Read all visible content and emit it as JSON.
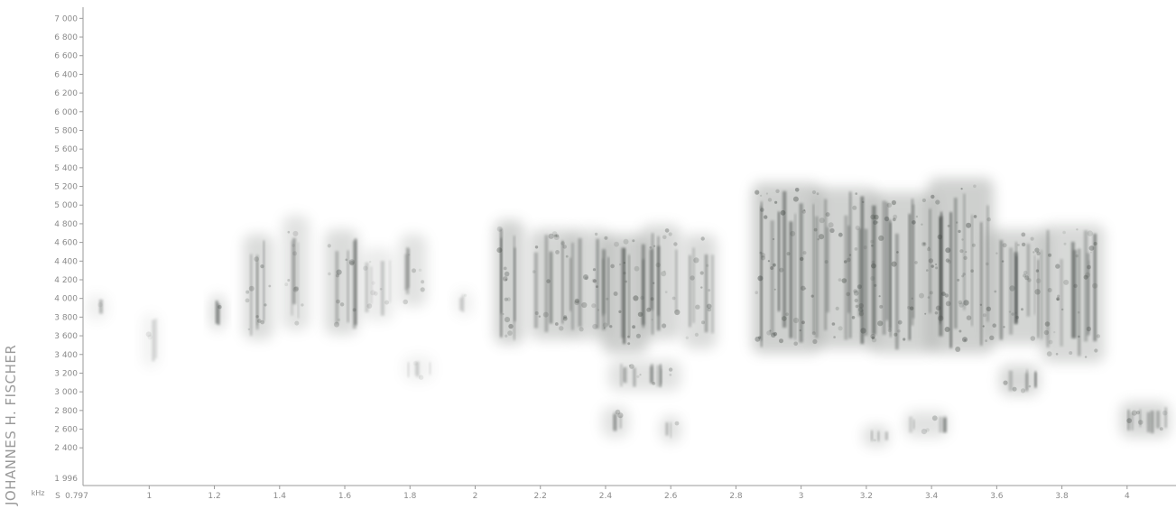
{
  "credit": "JOHANNES H. FISCHER",
  "chart_data": {
    "type": "heatmap",
    "title": "",
    "xunit": "S",
    "yunit": "kHz",
    "xlim": [
      0.797,
      4.15
    ],
    "ylim": [
      1996,
      7100
    ],
    "x_start_label": "0.797",
    "y_floor_label": "1 996",
    "x_ticks": [
      {
        "value": 1,
        "label": "1"
      },
      {
        "value": 1.2,
        "label": "1.2"
      },
      {
        "value": 1.4,
        "label": "1.4"
      },
      {
        "value": 1.6,
        "label": "1.6"
      },
      {
        "value": 1.8,
        "label": "1.8"
      },
      {
        "value": 2,
        "label": "2"
      },
      {
        "value": 2.2,
        "label": "2.2"
      },
      {
        "value": 2.4,
        "label": "2.4"
      },
      {
        "value": 2.6,
        "label": "2.6"
      },
      {
        "value": 2.8,
        "label": "2.8"
      },
      {
        "value": 3,
        "label": "3"
      },
      {
        "value": 3.2,
        "label": "3.2"
      },
      {
        "value": 3.4,
        "label": "3.4"
      },
      {
        "value": 3.6,
        "label": "3.6"
      },
      {
        "value": 3.8,
        "label": "3.8"
      },
      {
        "value": 4,
        "label": "4"
      }
    ],
    "y_ticks": [
      {
        "value": 2400,
        "label": "2 400"
      },
      {
        "value": 2600,
        "label": "2 600"
      },
      {
        "value": 2800,
        "label": "2 800"
      },
      {
        "value": 3000,
        "label": "3 000"
      },
      {
        "value": 3200,
        "label": "3 200"
      },
      {
        "value": 3400,
        "label": "3 400"
      },
      {
        "value": 3600,
        "label": "3 600"
      },
      {
        "value": 3800,
        "label": "3 800"
      },
      {
        "value": 4000,
        "label": "4 000"
      },
      {
        "value": 4200,
        "label": "4 200"
      },
      {
        "value": 4400,
        "label": "4 400"
      },
      {
        "value": 4600,
        "label": "4 600"
      },
      {
        "value": 4800,
        "label": "4 800"
      },
      {
        "value": 5000,
        "label": "5 000"
      },
      {
        "value": 5200,
        "label": "5 200"
      },
      {
        "value": 5400,
        "label": "5 400"
      },
      {
        "value": 5600,
        "label": "5 600"
      },
      {
        "value": 5800,
        "label": "5 800"
      },
      {
        "value": 6000,
        "label": "6 000"
      },
      {
        "value": 6200,
        "label": "6 200"
      },
      {
        "value": 6400,
        "label": "6 400"
      },
      {
        "value": 6600,
        "label": "6 600"
      },
      {
        "value": 6800,
        "label": "6 800"
      },
      {
        "value": 7000,
        "label": "7 000"
      }
    ],
    "energy_blobs": [
      {
        "t0": 0.82,
        "t1": 0.86,
        "f0": 3800,
        "f1": 4000,
        "intensity": 0.25
      },
      {
        "t0": 0.99,
        "t1": 1.02,
        "f0": 3300,
        "f1": 3800,
        "intensity": 0.2
      },
      {
        "t0": 1.2,
        "t1": 1.22,
        "f0": 3700,
        "f1": 4000,
        "intensity": 0.6
      },
      {
        "t0": 1.3,
        "t1": 1.37,
        "f0": 3600,
        "f1": 4650,
        "intensity": 0.55
      },
      {
        "t0": 1.42,
        "t1": 1.48,
        "f0": 3700,
        "f1": 4850,
        "intensity": 0.45
      },
      {
        "t0": 1.55,
        "t1": 1.63,
        "f0": 3650,
        "f1": 4700,
        "intensity": 0.55
      },
      {
        "t0": 1.66,
        "t1": 1.74,
        "f0": 3800,
        "f1": 4500,
        "intensity": 0.3
      },
      {
        "t0": 1.78,
        "t1": 1.84,
        "f0": 3950,
        "f1": 4650,
        "intensity": 0.45
      },
      {
        "t0": 1.79,
        "t1": 1.86,
        "f0": 3150,
        "f1": 3350,
        "intensity": 0.2
      },
      {
        "t0": 1.95,
        "t1": 1.98,
        "f0": 3850,
        "f1": 4050,
        "intensity": 0.25
      },
      {
        "t0": 2.07,
        "t1": 2.14,
        "f0": 3550,
        "f1": 4800,
        "intensity": 0.7
      },
      {
        "t0": 2.18,
        "t1": 2.3,
        "f0": 3600,
        "f1": 4700,
        "intensity": 0.65
      },
      {
        "t0": 2.3,
        "t1": 2.4,
        "f0": 3600,
        "f1": 4700,
        "intensity": 0.6
      },
      {
        "t0": 2.4,
        "t1": 2.52,
        "f0": 3450,
        "f1": 4650,
        "intensity": 0.75
      },
      {
        "t0": 2.42,
        "t1": 2.62,
        "f0": 3050,
        "f1": 3300,
        "intensity": 0.45
      },
      {
        "t0": 2.52,
        "t1": 2.62,
        "f0": 3600,
        "f1": 4750,
        "intensity": 0.6
      },
      {
        "t0": 2.4,
        "t1": 2.46,
        "f0": 2550,
        "f1": 2800,
        "intensity": 0.45
      },
      {
        "t0": 2.58,
        "t1": 2.62,
        "f0": 2500,
        "f1": 2700,
        "intensity": 0.5
      },
      {
        "t0": 2.65,
        "t1": 2.73,
        "f0": 3500,
        "f1": 4650,
        "intensity": 0.55
      },
      {
        "t0": 2.86,
        "t1": 3.05,
        "f0": 3450,
        "f1": 5200,
        "intensity": 0.75
      },
      {
        "t0": 3.05,
        "t1": 3.22,
        "f0": 3500,
        "f1": 5150,
        "intensity": 0.7
      },
      {
        "t0": 3.22,
        "t1": 3.4,
        "f0": 3450,
        "f1": 5100,
        "intensity": 0.7
      },
      {
        "t0": 3.4,
        "t1": 3.58,
        "f0": 3450,
        "f1": 5250,
        "intensity": 0.75
      },
      {
        "t0": 3.58,
        "t1": 3.75,
        "f0": 3550,
        "f1": 4700,
        "intensity": 0.65
      },
      {
        "t0": 3.75,
        "t1": 3.92,
        "f0": 3350,
        "f1": 4750,
        "intensity": 0.6
      },
      {
        "t0": 3.62,
        "t1": 3.72,
        "f0": 3000,
        "f1": 3250,
        "intensity": 0.6
      },
      {
        "t0": 3.2,
        "t1": 3.26,
        "f0": 2450,
        "f1": 2600,
        "intensity": 0.5
      },
      {
        "t0": 3.33,
        "t1": 3.44,
        "f0": 2550,
        "f1": 2750,
        "intensity": 0.45
      },
      {
        "t0": 3.99,
        "t1": 4.12,
        "f0": 2550,
        "f1": 2850,
        "intensity": 0.6
      }
    ]
  }
}
